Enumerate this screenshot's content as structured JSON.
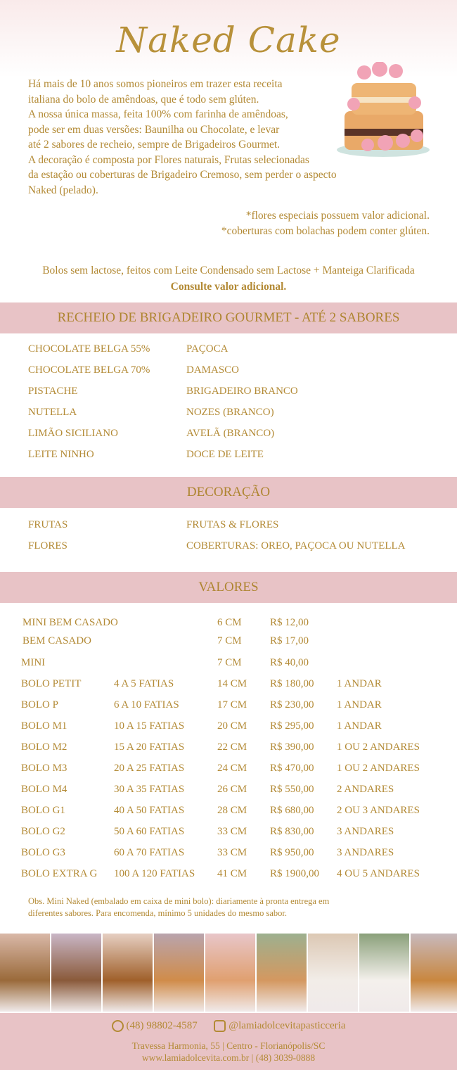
{
  "title": "Naked Cake",
  "intro": [
    "Há mais de 10 anos somos pioneiros em trazer esta receita",
    "italiana do bolo de amêndoas, que é todo sem glúten.",
    "A nossa única massa, feita 100% com farinha de amêndoas,",
    "pode ser em duas versões: Baunilha ou Chocolate, e levar",
    "até 2 sabores de recheio, sempre de Brigadeiros Gourmet.",
    "A decoração é composta por Flores naturais, Frutas selecionadas",
    "da estação ou coberturas de Brigadeiro Cremoso, sem perder o aspecto",
    "Naked (pelado)."
  ],
  "notes": [
    "*flores especiais possuem valor adicional.",
    "*coberturas com bolachas podem conter glúten."
  ],
  "lactose": {
    "text": "Bolos sem lactose, feitos com Leite Condensado sem Lactose + Manteiga Clarificada",
    "bold": "Consulte valor adicional."
  },
  "recheio": {
    "title": "RECHEIO DE BRIGADEIRO GOURMET - ATÉ 2 SABORES",
    "col1": [
      "CHOCOLATE BELGA 55%",
      "CHOCOLATE BELGA 70%",
      "PISTACHE",
      "NUTELLA",
      "LIMÃO SICILIANO",
      "LEITE NINHO"
    ],
    "col2": [
      "PAÇOCA",
      "DAMASCO",
      "BRIGADEIRO BRANCO",
      "NOZES (BRANCO)",
      "AVELÃ (BRANCO)",
      "DOCE DE LEITE"
    ]
  },
  "decoracao": {
    "title": "DECORAÇÃO",
    "col1": [
      "FRUTAS",
      "FLORES"
    ],
    "col2": [
      "FRUTAS & FLORES",
      "COBERTURAS: OREO, PAÇOCA OU NUTELLA"
    ]
  },
  "valores": {
    "title": "VALORES",
    "rows": [
      [
        "MINI BEM CASADO",
        "",
        "6 CM",
        "R$ 12,00",
        ""
      ],
      [
        "BEM CASADO",
        "",
        "7 CM",
        "R$ 17,00",
        ""
      ],
      [
        "MINI",
        "",
        "7 CM",
        "R$ 40,00",
        ""
      ],
      [
        "BOLO PETIT",
        "4 A 5 FATIAS",
        "14 CM",
        "R$ 180,00",
        "1 ANDAR"
      ],
      [
        "BOLO P",
        "6 A 10 FATIAS",
        "17 CM",
        "R$ 230,00",
        "1 ANDAR"
      ],
      [
        "BOLO M1",
        "10 A 15 FATIAS",
        "20 CM",
        "R$ 295,00",
        "1 ANDAR"
      ],
      [
        "BOLO M2",
        "15 A 20 FATIAS",
        "22 CM",
        "R$ 390,00",
        "1 OU 2 ANDARES"
      ],
      [
        "BOLO M3",
        "20 A 25 FATIAS",
        "24 CM",
        "R$ 470,00",
        "1 OU 2 ANDARES"
      ],
      [
        "BOLO M4",
        "30 A 35 FATIAS",
        "26 CM",
        "R$ 550,00",
        "2 ANDARES"
      ],
      [
        "BOLO G1",
        "40 A 50 FATIAS",
        "28 CM",
        "R$ 680,00",
        "2 OU 3 ANDARES"
      ],
      [
        "BOLO G2",
        "50 A 60 FATIAS",
        "33 CM",
        "R$ 830,00",
        "3 ANDARES"
      ],
      [
        "BOLO G3",
        "60 A 70 FATIAS",
        "33 CM",
        "R$ 950,00",
        "3 ANDARES"
      ],
      [
        "BOLO EXTRA G",
        "100 A 120 FATIAS",
        "41 CM",
        "R$ 1900,00",
        "4 OU 5 ANDARES"
      ]
    ]
  },
  "obs": [
    "Obs. Mini Naked (embalado em caixa de mini bolo): diariamente à pronta entrega em",
    "diferentes sabores. Para encomenda, mínimo 5 unidades do mesmo sabor."
  ],
  "footer": {
    "phone": "(48) 98802-4587",
    "instagram": "@lamiadolcevitapasticceria",
    "address": "Travessa Harmonia, 55 | Centro - Florianópolis/SC",
    "web": "www.lamiadolcevita.com.br | (48) 3039-0888",
    "phone_icon": "whatsapp-icon",
    "ig_icon": "instagram-icon"
  },
  "colors": {
    "gold": "#b38a35",
    "band": "#e8c3c6"
  }
}
